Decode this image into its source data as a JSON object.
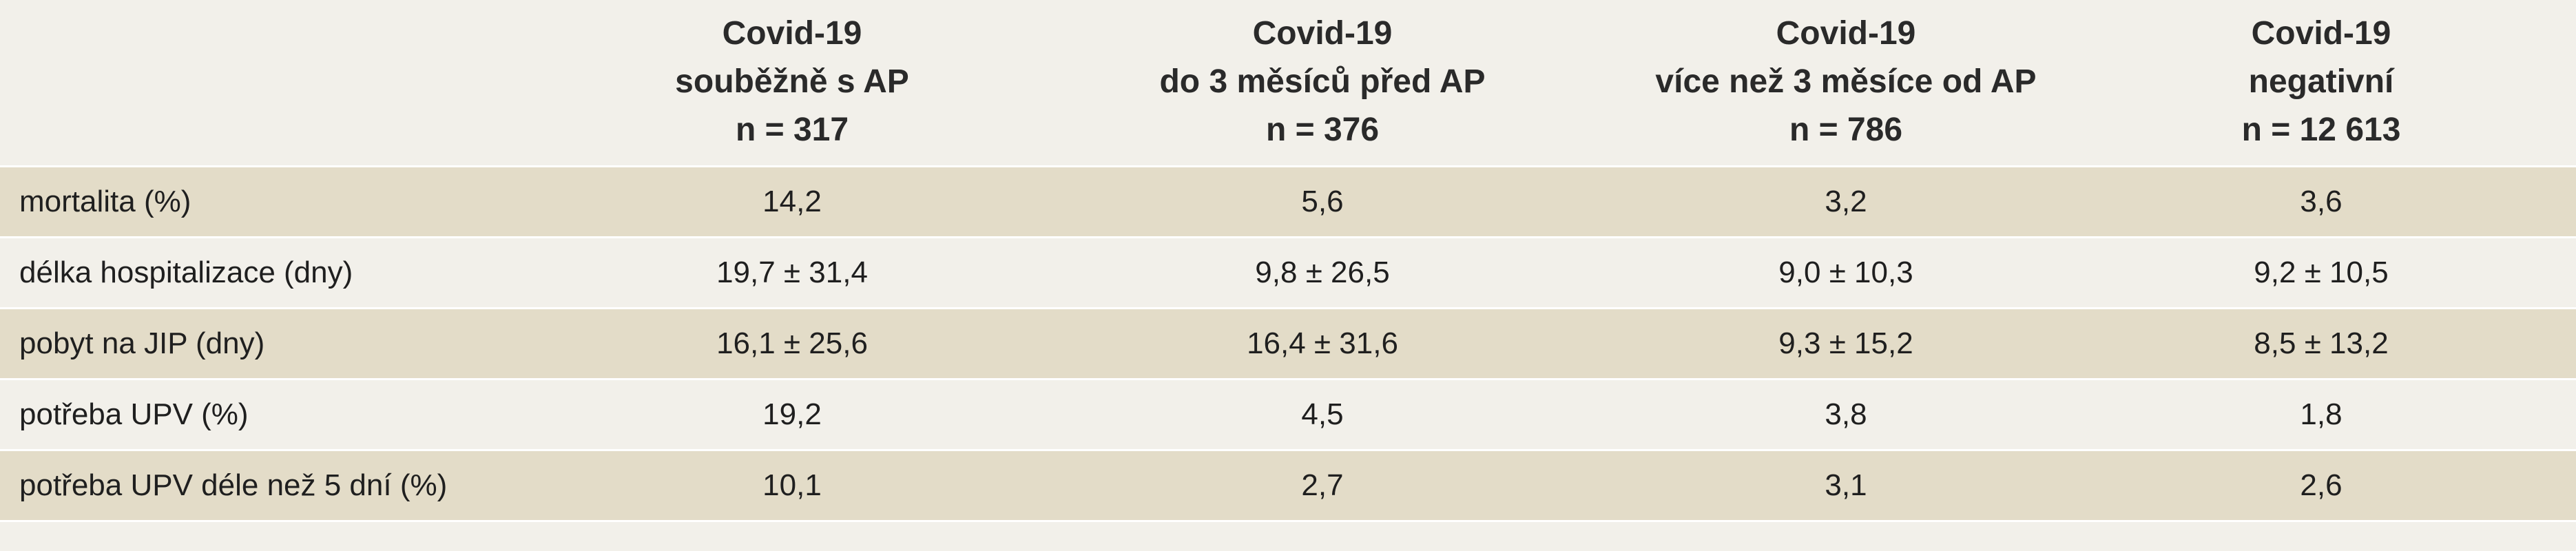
{
  "columns": [
    {
      "line1": "Covid-19",
      "line2": "souběžně s AP",
      "line3": "n = 317"
    },
    {
      "line1": "Covid-19",
      "line2": "do 3 měsíců před AP",
      "line3": "n = 376"
    },
    {
      "line1": "Covid-19",
      "line2": "více než 3 měsíce od AP",
      "line3": "n = 786"
    },
    {
      "line1": "Covid-19",
      "line2": "negativní",
      "line3": "n = 12 613"
    }
  ],
  "rows": [
    {
      "label": "mortalita (%)",
      "values": [
        "14,2",
        "5,6",
        "3,2",
        "3,6"
      ]
    },
    {
      "label": "délka hospitalizace (dny)",
      "values": [
        "19,7 ± 31,4",
        "9,8 ± 26,5",
        "9,0 ± 10,3",
        "9,2 ± 10,5"
      ]
    },
    {
      "label": "pobyt na JIP (dny)",
      "values": [
        "16,1 ± 25,6",
        "16,4 ± 31,6",
        "9,3 ± 15,2",
        "8,5 ± 13,2"
      ]
    },
    {
      "label": "potřeba UPV (%)",
      "values": [
        "19,2",
        "4,5",
        "3,8",
        "1,8"
      ]
    },
    {
      "label": "potřeba UPV déle než 5 dní (%)",
      "values": [
        "10,1",
        "2,7",
        "3,1",
        "2,6"
      ]
    }
  ]
}
